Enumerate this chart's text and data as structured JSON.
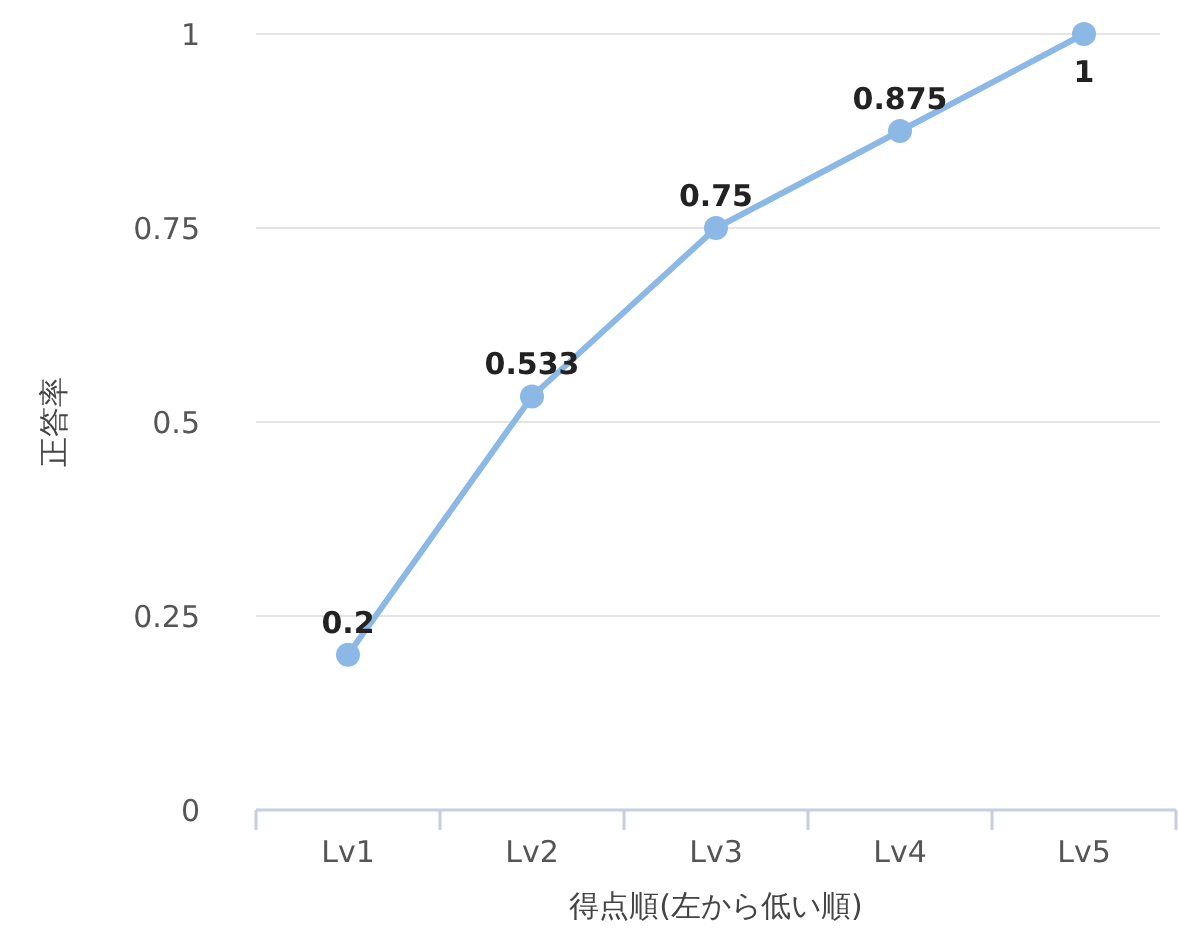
{
  "chart_data": {
    "type": "line",
    "xlabel": "得点順(左から低い順)",
    "ylabel": "正答率",
    "categories": [
      "Lv1",
      "Lv2",
      "Lv3",
      "Lv4",
      "Lv5"
    ],
    "series": [
      {
        "color": "#8cb8e6",
        "values": [
          0.2,
          0.533,
          0.75,
          0.875,
          1
        ]
      }
    ],
    "ylim": [
      0,
      1
    ],
    "yticks": [
      0,
      0.25,
      0.5,
      0.75,
      1
    ],
    "grid": "y",
    "data_labels": true,
    "marker": "circle",
    "line_style": "solid"
  }
}
